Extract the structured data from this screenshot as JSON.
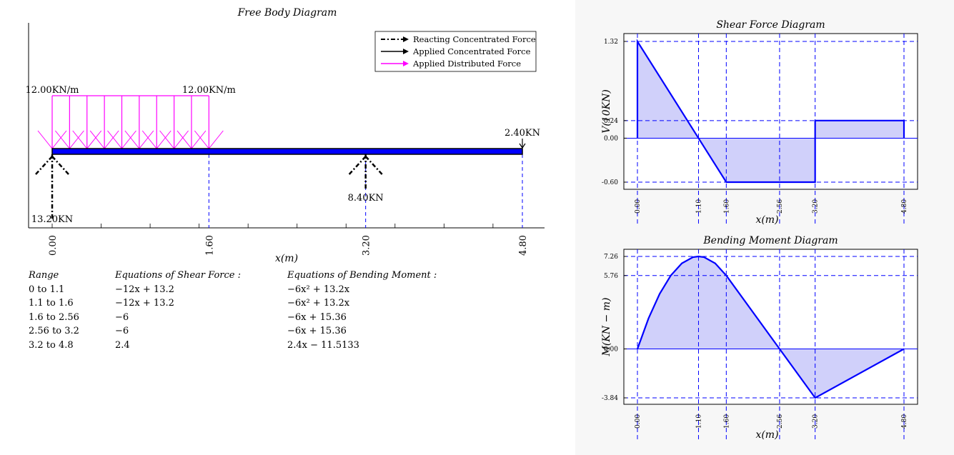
{
  "fbd": {
    "title": "Free Body Diagram",
    "xlabel": "x(m)",
    "ticks": [
      "0.00",
      "1.60",
      "3.20",
      "4.80"
    ],
    "legend": [
      {
        "label": "Reacting Concentrated Force",
        "color": "#000000",
        "style": "dash-dot"
      },
      {
        "label": "Applied Concentrated Force",
        "color": "#000000",
        "style": "solid"
      },
      {
        "label": "Applied Distributed Force",
        "color": "#ff00ff",
        "style": "solid"
      }
    ],
    "distributed_load": {
      "start": 0,
      "end": 1.6,
      "start_label": "12.00KN/m",
      "end_label": "12.00KN/m"
    },
    "point_load": {
      "x": 4.8,
      "label": "2.40KN"
    },
    "reactions": [
      {
        "x": 0,
        "label": "13.20KN"
      },
      {
        "x": 3.2,
        "label": "8.40KN"
      }
    ],
    "colors": {
      "beam": "#0000ff",
      "load": "#ff00ff",
      "guide": "#0000ff"
    }
  },
  "equations": {
    "headers": {
      "range": "Range",
      "shear": "Equations of Shear Force :",
      "moment": "Equations of Bending Moment :"
    },
    "rows": [
      {
        "range": "0 to 1.1",
        "shear": "−12x + 13.2",
        "moment": "−6x² + 13.2x"
      },
      {
        "range": "1.1 to 1.6",
        "shear": "−12x + 13.2",
        "moment": "−6x² + 13.2x"
      },
      {
        "range": "1.6 to 2.56",
        "shear": "−6",
        "moment": "−6x + 15.36"
      },
      {
        "range": "2.56 to 3.2",
        "shear": "−6",
        "moment": "−6x + 15.36"
      },
      {
        "range": "3.2 to 4.8",
        "shear": "2.4",
        "moment": "2.4x − 11.5133"
      }
    ]
  },
  "chart_data": [
    {
      "type": "line",
      "title": "Shear Force Diagram",
      "xlabel": "x(m)",
      "ylabel": "V(10KN)",
      "x_ticks": [
        "0.00",
        "1.10",
        "1.60",
        "2.56",
        "3.20",
        "4.80"
      ],
      "y_ticks": [
        "1.32",
        "0.24",
        "0.00",
        "-0.60"
      ],
      "xlim": [
        0,
        4.8
      ],
      "ylim": [
        -0.6,
        1.32
      ],
      "x": [
        0,
        0,
        1.1,
        1.6,
        3.2,
        3.2,
        4.8,
        4.8
      ],
      "values": [
        0,
        1.32,
        0,
        -0.6,
        -0.6,
        0.24,
        0.24,
        0
      ],
      "color": "#0000ff",
      "fill": "#d0d0fa",
      "grid": "dashed at ticks"
    },
    {
      "type": "line",
      "title": "Bending Moment Diagram",
      "xlabel": "x(m)",
      "ylabel": "M(KN − m)",
      "x_ticks": [
        "0.00",
        "1.10",
        "1.60",
        "2.56",
        "3.20",
        "4.80"
      ],
      "y_ticks": [
        "7.26",
        "5.76",
        "0.00",
        "-3.84"
      ],
      "xlim": [
        0,
        4.8
      ],
      "ylim": [
        -3.84,
        7.26
      ],
      "x": [
        0,
        0.2,
        0.4,
        0.6,
        0.8,
        1.0,
        1.1,
        1.2,
        1.4,
        1.6,
        2.56,
        3.2,
        4.8
      ],
      "values": [
        0,
        2.4,
        4.32,
        5.76,
        6.72,
        7.2,
        7.26,
        7.2,
        6.72,
        5.76,
        0,
        -3.84,
        0
      ],
      "color": "#0000ff",
      "fill": "#d0d0fa",
      "grid": "dashed at ticks"
    }
  ]
}
